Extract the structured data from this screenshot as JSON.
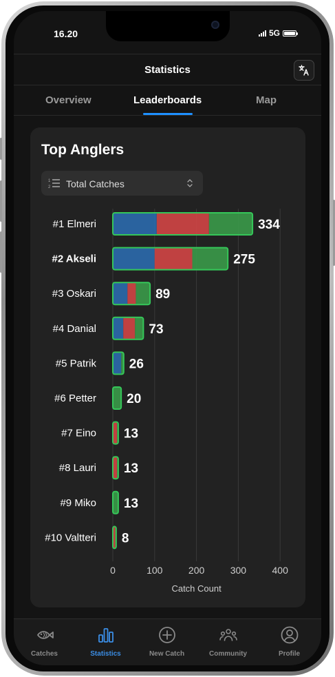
{
  "status_bar": {
    "time": "16.20",
    "network": "5G"
  },
  "header": {
    "title": "Statistics",
    "translate_icon": "translate-icon"
  },
  "tabs": [
    {
      "label": "Overview",
      "active": false
    },
    {
      "label": "Leaderboards",
      "active": true
    },
    {
      "label": "Map",
      "active": false
    }
  ],
  "card": {
    "title": "Top Anglers",
    "sort": {
      "selected": "Total Catches",
      "icon": "sort-list-icon"
    }
  },
  "chart_data": {
    "type": "bar",
    "orientation": "horizontal",
    "stacked": true,
    "categories": [
      "#1 Elmeri",
      "#2 Akseli",
      "#3 Oskari",
      "#4 Danial",
      "#5 Patrik",
      "#6 Petter",
      "#7 Eino",
      "#8 Lauri",
      "#9 Miko",
      "#10 Valtteri"
    ],
    "highlighted_category": "#2 Akseli",
    "series": [
      {
        "color": "#2b6cb0",
        "values": [
          105,
          100,
          35,
          25,
          20,
          0,
          0,
          0,
          0,
          0
        ]
      },
      {
        "color": "#d64545",
        "values": [
          125,
          90,
          20,
          28,
          0,
          0,
          10,
          10,
          0,
          6
        ]
      },
      {
        "color": "#3a9d4a",
        "values": [
          104,
          85,
          34,
          20,
          6,
          20,
          3,
          3,
          13,
          2
        ]
      }
    ],
    "totals": [
      334,
      275,
      89,
      73,
      26,
      20,
      13,
      13,
      13,
      8
    ],
    "xlabel": "Catch Count",
    "xticks": [
      0,
      100,
      200,
      300,
      400
    ],
    "xlim": [
      0,
      400
    ],
    "grid": true
  },
  "bottom_nav": [
    {
      "label": "Catches",
      "icon": "fish-icon",
      "active": false
    },
    {
      "label": "Statistics",
      "icon": "bar-chart-icon",
      "active": true
    },
    {
      "label": "New Catch",
      "icon": "plus-circle-icon",
      "active": false
    },
    {
      "label": "Community",
      "icon": "community-icon",
      "active": false
    },
    {
      "label": "Profile",
      "icon": "profile-icon",
      "active": false
    }
  ]
}
